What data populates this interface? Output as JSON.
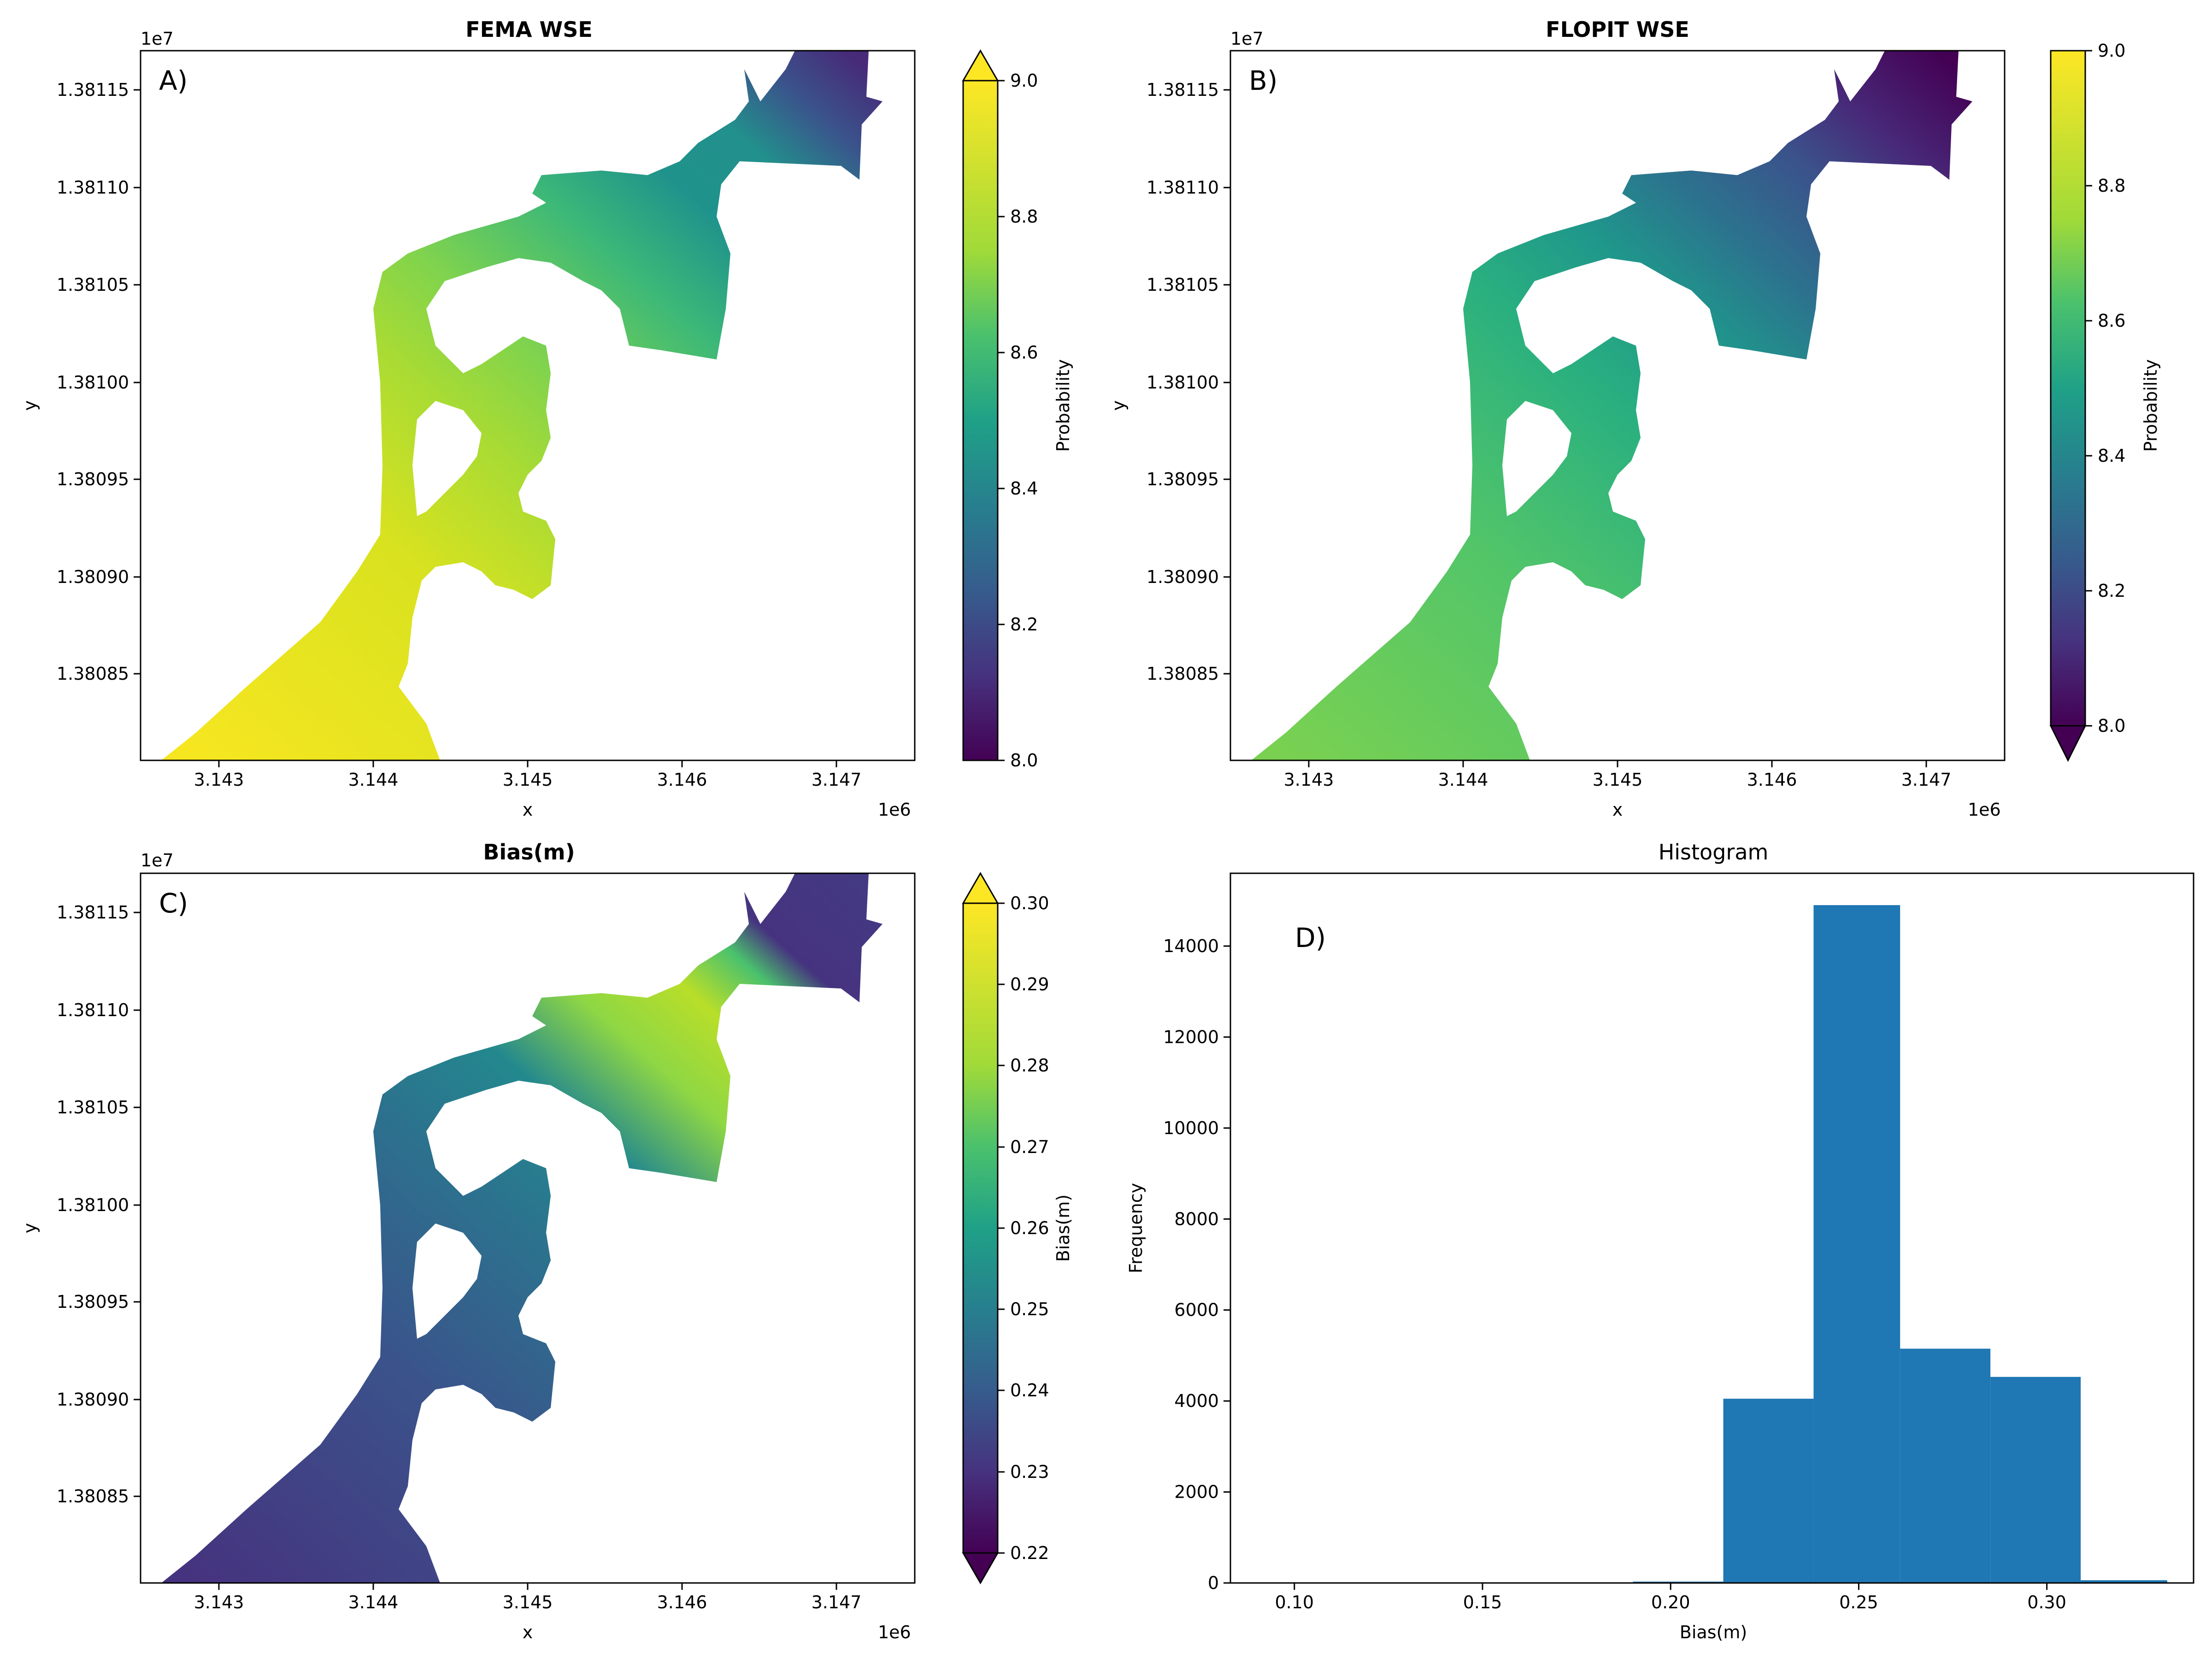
{
  "panels": {
    "a": {
      "title": "FEMA WSE",
      "label": "A)",
      "xlabel": "x",
      "ylabel": "y",
      "x_offset_text": "1e6",
      "y_offset_text": "1e7",
      "colorbar": {
        "label": "Probability",
        "ticks": [
          "8.0",
          "8.2",
          "8.4",
          "8.6",
          "8.8",
          "9.0"
        ],
        "range": [
          8.0,
          9.0
        ],
        "extend": "max"
      }
    },
    "b": {
      "title": "FLOPIT WSE",
      "label": "B)",
      "xlabel": "x",
      "ylabel": "y",
      "x_offset_text": "1e6",
      "y_offset_text": "1e7",
      "colorbar": {
        "label": "Probability",
        "ticks": [
          "8.0",
          "8.2",
          "8.4",
          "8.6",
          "8.8",
          "9.0"
        ],
        "range": [
          8.0,
          9.0
        ],
        "extend": "min"
      }
    },
    "c": {
      "title": "Bias(m)",
      "label": "C)",
      "xlabel": "x",
      "ylabel": "y",
      "x_offset_text": "1e6",
      "y_offset_text": "1e7",
      "colorbar": {
        "label": "Bias(m)",
        "ticks": [
          "0.22",
          "0.23",
          "0.24",
          "0.25",
          "0.26",
          "0.27",
          "0.28",
          "0.29",
          "0.30"
        ],
        "range": [
          0.22,
          0.3
        ],
        "extend": "both"
      }
    },
    "d": {
      "label": "D)"
    }
  },
  "map_axes": {
    "xticks": [
      "3.143",
      "3.144",
      "3.145",
      "3.146",
      "3.147"
    ],
    "yticks": [
      "1.38085",
      "1.38090",
      "1.38095",
      "1.38100",
      "1.38105",
      "1.38110",
      "1.38115"
    ]
  },
  "chart_data": {
    "type": "bar",
    "title": "Histogram",
    "xlabel": "Bias(m)",
    "ylabel": "Frequency",
    "xlim": [
      0.083,
      0.339
    ],
    "ylim": [
      0,
      15600
    ],
    "xticks": [
      "0.10",
      "0.15",
      "0.20",
      "0.25",
      "0.30"
    ],
    "yticks": [
      "0",
      "2000",
      "4000",
      "6000",
      "8000",
      "10000",
      "12000",
      "14000"
    ],
    "color": "#1f77b4",
    "bins": [
      {
        "left": 0.19,
        "right": 0.214,
        "value": 30
      },
      {
        "left": 0.214,
        "right": 0.238,
        "value": 4050
      },
      {
        "left": 0.238,
        "right": 0.261,
        "value": 14900
      },
      {
        "left": 0.261,
        "right": 0.285,
        "value": 5150
      },
      {
        "left": 0.285,
        "right": 0.309,
        "value": 4530
      },
      {
        "left": 0.309,
        "right": 0.332,
        "value": 60
      }
    ]
  }
}
